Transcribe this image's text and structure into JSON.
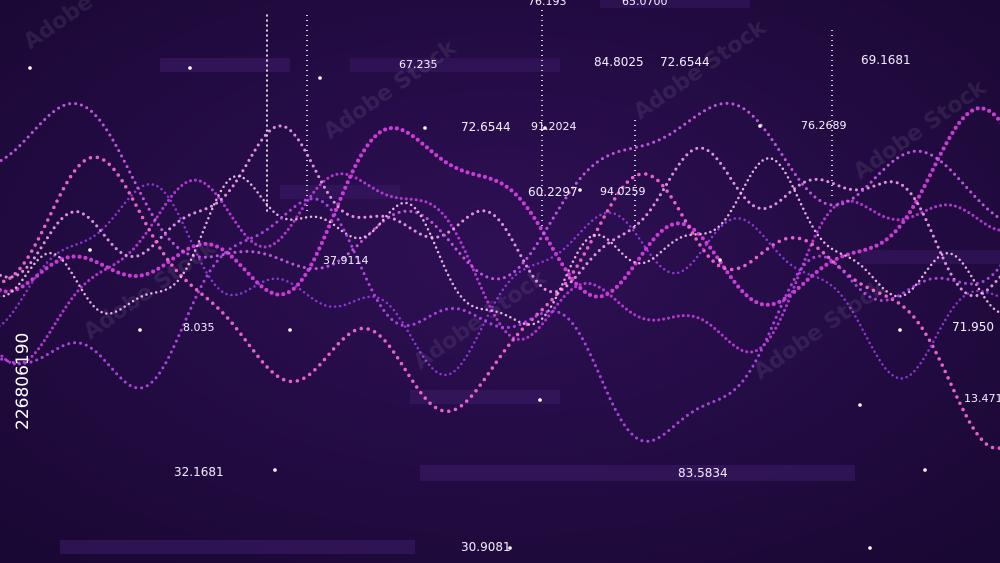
{
  "labels": [
    "76.193",
    "65.0700",
    "67.235",
    "84.8025",
    "72.6544",
    "69.1681",
    "72.6544",
    "91.2024",
    "76.2689",
    "60.2297",
    "94.0259",
    "37.9114",
    "8.035",
    "71.950",
    "13.471",
    "32.1681",
    "83.5834",
    "30.9081"
  ],
  "watermark": {
    "id": "226806190",
    "brand": "Adobe Stock"
  }
}
